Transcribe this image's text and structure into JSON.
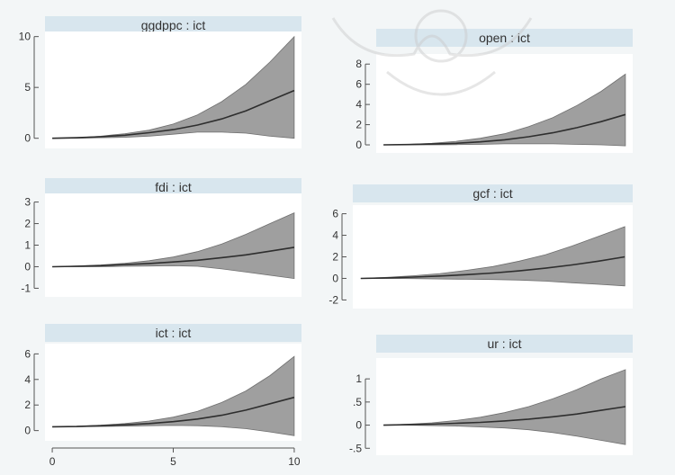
{
  "chart_data": [
    {
      "type": "area",
      "title": "ggdppc : ict",
      "x": [
        0,
        1,
        2,
        3,
        4,
        5,
        6,
        7,
        8,
        9,
        10
      ],
      "series": [
        {
          "values": [
            0,
            0.05,
            0.15,
            0.3,
            0.55,
            0.85,
            1.3,
            1.9,
            2.7,
            3.7,
            4.7
          ]
        },
        {
          "values": [
            0,
            0.05,
            0.2,
            0.45,
            0.8,
            1.4,
            2.3,
            3.6,
            5.3,
            7.5,
            10.0
          ]
        },
        {
          "values": [
            0,
            0.0,
            0.05,
            0.1,
            0.2,
            0.4,
            0.6,
            0.6,
            0.5,
            0.2,
            0.0
          ]
        }
      ],
      "ylim": [
        -1,
        10.5
      ],
      "yticks": [
        0,
        5,
        10
      ],
      "xlim": [
        -0.3,
        10.3
      ],
      "xticks": [
        0,
        5,
        10
      ],
      "xtick_labels": false
    },
    {
      "type": "area",
      "title": "open : ict",
      "x": [
        0,
        1,
        2,
        3,
        4,
        5,
        6,
        7,
        8,
        9,
        10
      ],
      "series": [
        {
          "values": [
            0,
            0.03,
            0.08,
            0.15,
            0.3,
            0.5,
            0.8,
            1.2,
            1.7,
            2.3,
            3.0
          ]
        },
        {
          "values": [
            0,
            0.05,
            0.15,
            0.35,
            0.65,
            1.1,
            1.8,
            2.7,
            3.9,
            5.3,
            7.0
          ]
        },
        {
          "values": [
            0,
            0.0,
            0.0,
            0.02,
            0.05,
            0.1,
            0.1,
            0.1,
            0.05,
            0.0,
            -0.1
          ]
        }
      ],
      "ylim": [
        -0.8,
        9
      ],
      "yticks": [
        0,
        2,
        4,
        6,
        8
      ],
      "xlim": [
        -0.3,
        10.3
      ],
      "xticks": [
        0,
        5,
        10
      ],
      "xtick_labels": false
    },
    {
      "type": "area",
      "title": "fdi : ict",
      "x": [
        0,
        1,
        2,
        3,
        4,
        5,
        6,
        7,
        8,
        9,
        10
      ],
      "series": [
        {
          "values": [
            0,
            0.02,
            0.05,
            0.1,
            0.15,
            0.22,
            0.3,
            0.42,
            0.55,
            0.72,
            0.9
          ]
        },
        {
          "values": [
            0,
            0.03,
            0.08,
            0.16,
            0.28,
            0.45,
            0.7,
            1.05,
            1.5,
            2.0,
            2.5
          ]
        },
        {
          "values": [
            0,
            0.0,
            0.0,
            0.02,
            0.03,
            0.05,
            0.02,
            -0.1,
            -0.25,
            -0.4,
            -0.55
          ]
        }
      ],
      "ylim": [
        -1.4,
        3.4
      ],
      "yticks": [
        -1,
        0,
        1,
        2,
        3
      ],
      "xlim": [
        -0.3,
        10.3
      ],
      "xticks": [
        0,
        5,
        10
      ],
      "xtick_labels": false
    },
    {
      "type": "area",
      "title": "gcf : ict",
      "x": [
        0,
        1,
        2,
        3,
        4,
        5,
        6,
        7,
        8,
        9,
        10
      ],
      "series": [
        {
          "values": [
            0,
            0.05,
            0.12,
            0.22,
            0.35,
            0.5,
            0.7,
            0.95,
            1.25,
            1.6,
            2.0
          ]
        },
        {
          "values": [
            0,
            0.1,
            0.25,
            0.45,
            0.75,
            1.1,
            1.6,
            2.2,
            3.0,
            3.9,
            4.8
          ]
        },
        {
          "values": [
            0,
            0.0,
            -0.02,
            -0.05,
            -0.08,
            -0.1,
            -0.15,
            -0.25,
            -0.4,
            -0.55,
            -0.7
          ]
        }
      ],
      "ylim": [
        -2.8,
        6.8
      ],
      "yticks": [
        -2,
        0,
        2,
        4,
        6
      ],
      "xlim": [
        -0.3,
        10.3
      ],
      "xticks": [
        0,
        5,
        10
      ],
      "xtick_labels": false
    },
    {
      "type": "area",
      "title": "ict : ict",
      "x": [
        0,
        1,
        2,
        3,
        4,
        5,
        6,
        7,
        8,
        9,
        10
      ],
      "series": [
        {
          "values": [
            0.3,
            0.32,
            0.38,
            0.45,
            0.55,
            0.7,
            0.9,
            1.2,
            1.6,
            2.1,
            2.6
          ]
        },
        {
          "values": [
            0.3,
            0.33,
            0.42,
            0.55,
            0.75,
            1.05,
            1.5,
            2.2,
            3.1,
            4.3,
            5.8
          ]
        },
        {
          "values": [
            0.3,
            0.3,
            0.32,
            0.35,
            0.38,
            0.4,
            0.38,
            0.3,
            0.15,
            -0.1,
            -0.4
          ]
        }
      ],
      "ylim": [
        -0.8,
        6.8
      ],
      "yticks": [
        0,
        2,
        4,
        6
      ],
      "xlim": [
        -0.3,
        10.3
      ],
      "xticks": [
        0,
        5,
        10
      ],
      "xtick_labels": true,
      "xtick_text": [
        "0",
        "5",
        "10"
      ]
    },
    {
      "type": "area",
      "title": "ur : ict",
      "x": [
        0,
        1,
        2,
        3,
        4,
        5,
        6,
        7,
        8,
        9,
        10
      ],
      "series": [
        {
          "values": [
            0,
            0.01,
            0.02,
            0.04,
            0.06,
            0.09,
            0.13,
            0.18,
            0.24,
            0.32,
            0.4
          ]
        },
        {
          "values": [
            0,
            0.02,
            0.05,
            0.1,
            0.17,
            0.27,
            0.4,
            0.57,
            0.77,
            1.0,
            1.2
          ]
        },
        {
          "values": [
            0,
            0.0,
            -0.01,
            -0.02,
            -0.04,
            -0.06,
            -0.1,
            -0.16,
            -0.24,
            -0.33,
            -0.42
          ]
        }
      ],
      "ylim": [
        -0.65,
        1.45
      ],
      "yticks": [
        -0.5,
        0,
        0.5,
        1
      ],
      "ytick_text": [
        "-.5",
        "0",
        ".5",
        "1"
      ],
      "xlim": [
        -0.3,
        10.3
      ],
      "xticks": [
        0,
        5,
        10
      ],
      "xtick_labels": false
    }
  ],
  "colors": {
    "band": "#8e8e8e",
    "line": "#2e2e2e",
    "title_bar": "#d8e6ee",
    "plot_bg": "#ffffff",
    "axis": "#555555",
    "watermark": "#c9c9c9"
  }
}
